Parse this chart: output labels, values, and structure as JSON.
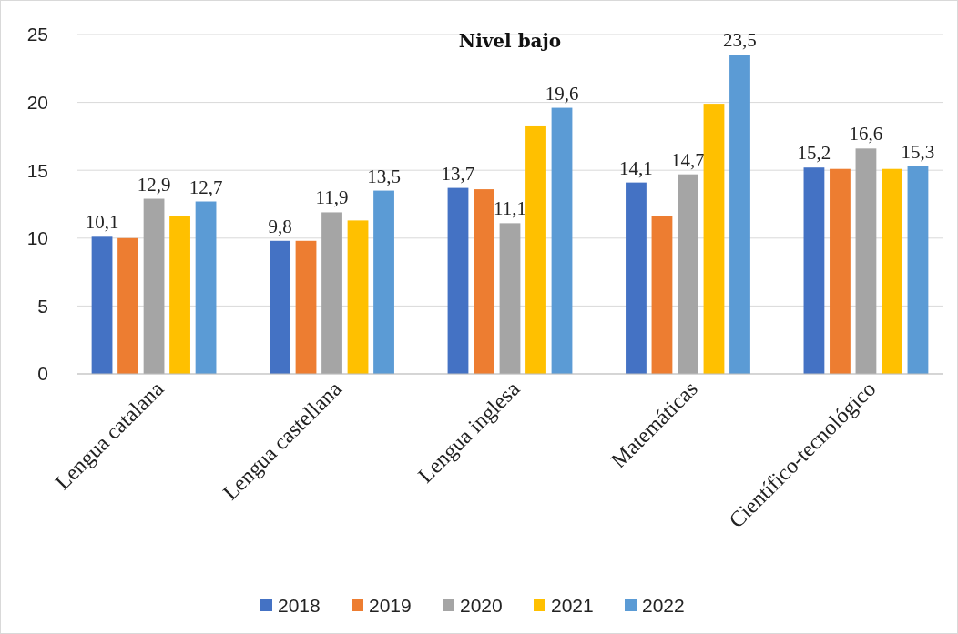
{
  "chart_data": {
    "type": "bar",
    "title": "Nivel bajo",
    "categories": [
      "Lengua catalana",
      "Lengua castellana",
      "Lengua inglesa",
      "Matemáticas",
      "Científico-tecnológico"
    ],
    "series": [
      {
        "name": "2018",
        "color": "#4472c4",
        "values": [
          10.1,
          9.8,
          13.7,
          14.1,
          15.2
        ],
        "value_labels": [
          "10,1",
          "9,8",
          "13,7",
          "14,1",
          "15,2"
        ]
      },
      {
        "name": "2019",
        "color": "#ed7d31",
        "values": [
          10.0,
          9.8,
          13.6,
          11.6,
          15.1
        ],
        "value_labels": [
          null,
          null,
          null,
          null,
          null
        ]
      },
      {
        "name": "2020",
        "color": "#a5a5a5",
        "values": [
          12.9,
          11.9,
          11.1,
          14.7,
          16.6
        ],
        "value_labels": [
          "12,9",
          "11,9",
          "11,1",
          "14,7",
          "16,6"
        ]
      },
      {
        "name": "2021",
        "color": "#ffc000",
        "values": [
          11.6,
          11.3,
          18.3,
          19.9,
          15.1
        ],
        "value_labels": [
          null,
          null,
          null,
          null,
          null
        ]
      },
      {
        "name": "2022",
        "color": "#5b9bd5",
        "values": [
          12.7,
          13.5,
          19.6,
          23.5,
          15.3
        ],
        "value_labels": [
          "12,7",
          "13,5",
          "19,6",
          "23,5",
          "15,3"
        ]
      }
    ],
    "ylim": [
      0,
      25
    ],
    "yticks": [
      0,
      5,
      10,
      15,
      20,
      25
    ],
    "grid": "y",
    "legend": "bottom"
  }
}
